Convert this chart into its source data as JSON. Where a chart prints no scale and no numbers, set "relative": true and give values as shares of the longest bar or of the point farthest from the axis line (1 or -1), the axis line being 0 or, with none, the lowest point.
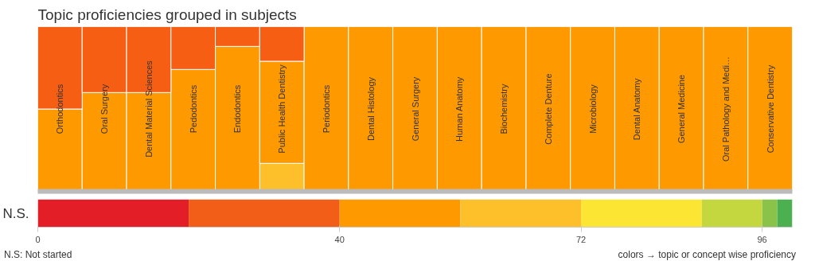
{
  "chart_data": [
    {
      "type": "bar",
      "title": "Topic proficiencies grouped in subjects",
      "stacked": true,
      "relative": true,
      "grid": false,
      "categories": [
        "Orthodontics",
        "Oral Surgery",
        "Dental Material Sciences",
        "Pedodontics",
        "Endodontics",
        "Public Health Dentistry",
        "Periodontics",
        "Dental Histology",
        "General Surgery",
        "Human Anatomy",
        "Biochemistry",
        "Complete Denture",
        "Microbiology",
        "Dental Anatomy",
        "General Medicine",
        "Oral Pathology and Medi…",
        "Conservative Dentistry"
      ],
      "series": [
        {
          "color": "#fec02a",
          "values": [
            null,
            null,
            null,
            null,
            null,
            0.17,
            null,
            null,
            null,
            null,
            null,
            null,
            null,
            null,
            null,
            null,
            null
          ]
        },
        {
          "color": "#fe9900",
          "values": [
            0.5,
            0.6,
            0.6,
            0.74,
            0.88,
            0.62,
            1,
            1,
            1,
            1,
            1,
            1,
            1,
            1,
            1,
            1,
            1
          ]
        },
        {
          "color": "#f65e14",
          "values": [
            0.5,
            0.4,
            0.4,
            0.26,
            0.12,
            0.21,
            null,
            null,
            null,
            null,
            null,
            null,
            null,
            null,
            null,
            null,
            null
          ]
        }
      ]
    },
    {
      "type": "bar",
      "orientation": "horizontal",
      "stacked": true,
      "grid": false,
      "categories": [
        "N.S."
      ],
      "xlim": [
        0,
        100
      ],
      "xticks": [
        0,
        40,
        72,
        96
      ],
      "series": [
        {
          "color": "#e41e26",
          "values": [
            20
          ]
        },
        {
          "color": "#f25d17",
          "values": [
            20
          ]
        },
        {
          "color": "#fe9900",
          "values": [
            16
          ]
        },
        {
          "color": "#fec02a",
          "values": [
            16
          ]
        },
        {
          "color": "#fde533",
          "values": [
            16
          ]
        },
        {
          "color": "#c4d73f",
          "values": [
            8
          ]
        },
        {
          "color": "#8bc34a",
          "values": [
            2
          ]
        },
        {
          "color": "#4caf50",
          "values": [
            2
          ]
        }
      ],
      "annotations": [
        "N.S: Not started",
        "colors → topic or concept wise proficiency"
      ]
    }
  ]
}
